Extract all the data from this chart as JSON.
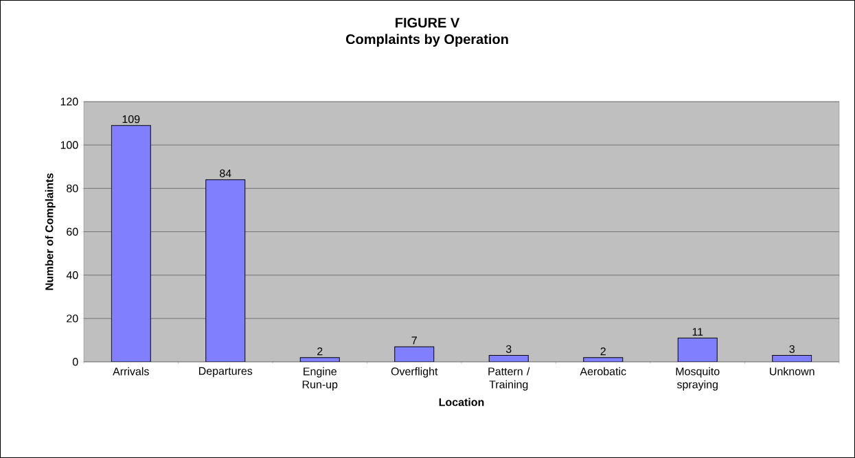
{
  "chart_data": {
    "type": "bar",
    "title": "FIGURE V",
    "subtitle": "Complaints by Operation",
    "xlabel": "Location",
    "ylabel": "Number of Complaints",
    "categories": [
      "Arrivals",
      "Departures",
      "Engine Run-up",
      "Overflight",
      "Pattern / Training",
      "Aerobatic",
      "Mosquito spraying",
      "Unknown"
    ],
    "values": [
      109,
      84,
      2,
      7,
      3,
      2,
      11,
      3
    ],
    "color": "#8080ff",
    "ylim": [
      0,
      120
    ],
    "yticks": [
      0,
      20,
      40,
      60,
      80,
      100,
      120
    ],
    "grid": "y",
    "data_labels": true
  }
}
